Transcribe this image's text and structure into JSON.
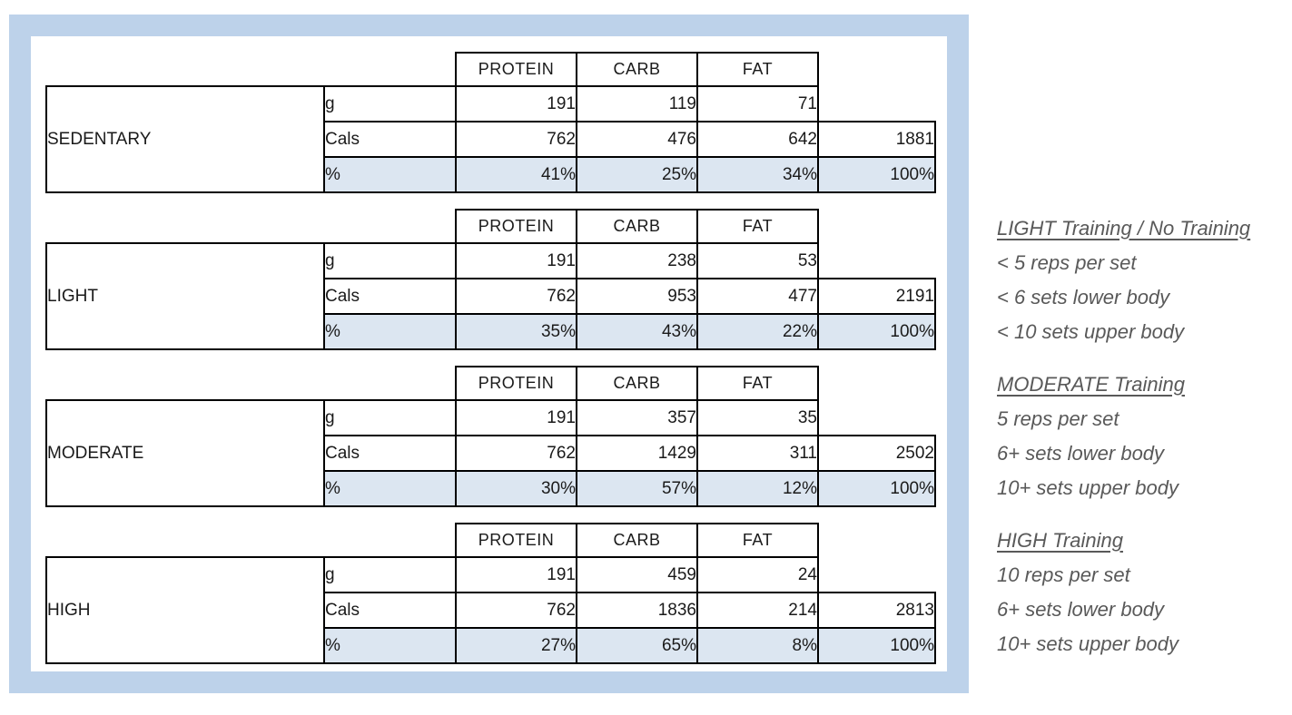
{
  "page": {
    "frame_color": "#BDD2EA",
    "panel_color": "#FFFFFF",
    "table_border_color": "#000000",
    "percent_row_fill": "#DCE6F1",
    "note_text_color": "#595959"
  },
  "columns": [
    "PROTEIN",
    "CARB",
    "FAT"
  ],
  "tables": [
    {
      "label": "SEDENTARY",
      "rows": [
        {
          "label": "g",
          "values": [
            "191",
            "119",
            "71"
          ],
          "total": null,
          "shaded": false
        },
        {
          "label": "Cals",
          "values": [
            "762",
            "476",
            "642"
          ],
          "total": "1881",
          "shaded": false
        },
        {
          "label": "%",
          "values": [
            "41%",
            "25%",
            "34%"
          ],
          "total": "100%",
          "shaded": true
        }
      ]
    },
    {
      "label": "LIGHT",
      "rows": [
        {
          "label": "g",
          "values": [
            "191",
            "238",
            "53"
          ],
          "total": null,
          "shaded": false
        },
        {
          "label": "Cals",
          "values": [
            "762",
            "953",
            "477"
          ],
          "total": "2191",
          "shaded": false
        },
        {
          "label": "%",
          "values": [
            "35%",
            "43%",
            "22%"
          ],
          "total": "100%",
          "shaded": true
        }
      ]
    },
    {
      "label": "MODERATE",
      "rows": [
        {
          "label": "g",
          "values": [
            "191",
            "357",
            "35"
          ],
          "total": null,
          "shaded": false
        },
        {
          "label": "Cals",
          "values": [
            "762",
            "1429",
            "311"
          ],
          "total": "2502",
          "shaded": false
        },
        {
          "label": "%",
          "values": [
            "30%",
            "57%",
            "12%"
          ],
          "total": "100%",
          "shaded": true
        }
      ]
    },
    {
      "label": "HIGH",
      "rows": [
        {
          "label": "g",
          "values": [
            "191",
            "459",
            "24"
          ],
          "total": null,
          "shaded": false
        },
        {
          "label": "Cals",
          "values": [
            "762",
            "1836",
            "214"
          ],
          "total": "2813",
          "shaded": false
        },
        {
          "label": "%",
          "values": [
            "27%",
            "65%",
            "8%"
          ],
          "total": "100%",
          "shaded": true
        }
      ]
    }
  ],
  "notes": [
    {
      "title": "LIGHT Training / No Training",
      "lines": [
        "< 5 reps per set",
        "< 6 sets lower body",
        "< 10 sets upper body"
      ]
    },
    {
      "title": "MODERATE Training",
      "lines": [
        "5 reps per set",
        "6+ sets lower body",
        "10+ sets upper body"
      ]
    },
    {
      "title": "HIGH Training",
      "lines": [
        "10 reps per set",
        "6+ sets lower body",
        "10+ sets upper body"
      ]
    }
  ]
}
